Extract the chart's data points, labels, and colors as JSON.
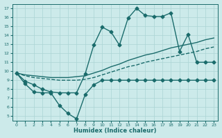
{
  "xlabel": "Humidex (Indice chaleur)",
  "bg_color": "#cceaea",
  "line_color": "#1a6b6b",
  "grid_color": "#aad4d4",
  "xlim": [
    -0.5,
    23.5
  ],
  "ylim": [
    4.5,
    17.5
  ],
  "xticks": [
    0,
    1,
    2,
    3,
    4,
    5,
    6,
    7,
    8,
    9,
    10,
    11,
    12,
    13,
    14,
    15,
    16,
    17,
    18,
    19,
    20,
    21,
    22,
    23
  ],
  "yticks": [
    5,
    6,
    7,
    8,
    9,
    10,
    11,
    12,
    13,
    14,
    15,
    16,
    17
  ],
  "series": [
    {
      "x": [
        0,
        1,
        2,
        3,
        4,
        5,
        6,
        7,
        8,
        9,
        10,
        11,
        12,
        13,
        14,
        15,
        16,
        17,
        18,
        19,
        20,
        21,
        22,
        23
      ],
      "y": [
        9.8,
        8.9,
        8.5,
        8.0,
        7.7,
        7.6,
        7.6,
        7.6,
        9.7,
        12.9,
        14.9,
        14.4,
        12.9,
        15.9,
        17.0,
        16.2,
        16.1,
        16.1,
        16.5,
        12.2,
        14.1,
        11.0,
        11.0,
        11.0
      ],
      "style": "-",
      "marker": "D",
      "markersize": 2.5,
      "linewidth": 1.0
    },
    {
      "x": [
        0,
        1,
        2,
        3,
        4,
        5,
        6,
        7,
        8,
        9,
        10,
        11,
        12,
        13,
        14,
        15,
        16,
        17,
        18,
        19,
        20,
        21,
        22,
        23
      ],
      "y": [
        9.8,
        9.6,
        9.5,
        9.4,
        9.3,
        9.3,
        9.3,
        9.4,
        9.5,
        9.8,
        10.1,
        10.5,
        10.8,
        11.2,
        11.5,
        11.8,
        12.0,
        12.3,
        12.6,
        12.8,
        13.0,
        13.2,
        13.5,
        13.7
      ],
      "style": "-",
      "marker": null,
      "markersize": 0,
      "linewidth": 1.0
    },
    {
      "x": [
        0,
        1,
        2,
        3,
        4,
        5,
        6,
        7,
        8,
        9,
        10,
        11,
        12,
        13,
        14,
        15,
        16,
        17,
        18,
        19,
        20,
        21,
        22,
        23
      ],
      "y": [
        9.8,
        9.5,
        9.3,
        9.2,
        9.1,
        9.0,
        9.0,
        9.0,
        9.1,
        9.3,
        9.6,
        9.9,
        10.2,
        10.5,
        10.7,
        11.0,
        11.2,
        11.4,
        11.6,
        11.8,
        12.0,
        12.2,
        12.5,
        12.7
      ],
      "style": "--",
      "marker": null,
      "markersize": 0,
      "linewidth": 1.0
    },
    {
      "x": [
        0,
        1,
        2,
        3,
        4,
        5,
        6,
        7,
        8,
        9,
        10,
        11,
        12,
        13,
        14,
        15,
        16,
        17,
        18,
        19,
        20,
        21,
        22,
        23
      ],
      "y": [
        9.8,
        8.6,
        7.7,
        7.6,
        7.6,
        6.2,
        5.3,
        4.7,
        7.4,
        8.5,
        9.0,
        9.0,
        9.0,
        9.0,
        9.0,
        9.0,
        9.0,
        9.0,
        9.0,
        9.0,
        9.0,
        9.0,
        9.0,
        9.0
      ],
      "style": "-",
      "marker": "D",
      "markersize": 2.5,
      "linewidth": 1.0
    }
  ]
}
